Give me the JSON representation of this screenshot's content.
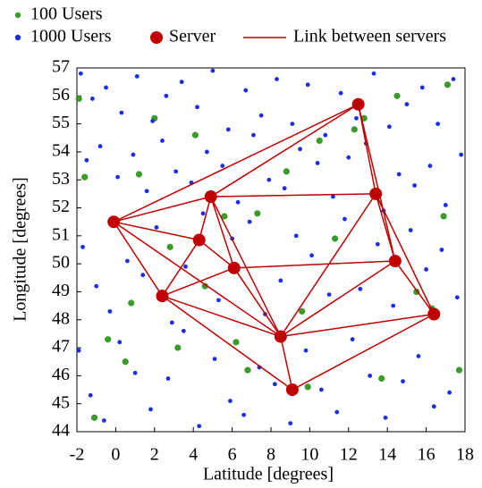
{
  "chart_data": {
    "type": "scatter",
    "xlabel": "Latitude [degrees]",
    "ylabel": "Longitude [degrees]",
    "xlim": [
      -2,
      18
    ],
    "xticks": [
      -2,
      0,
      2,
      4,
      6,
      8,
      10,
      12,
      14,
      16,
      18
    ],
    "ylim": [
      44,
      57
    ],
    "yticks": [
      44,
      45,
      46,
      47,
      48,
      49,
      50,
      51,
      52,
      53,
      54,
      55,
      56,
      57
    ],
    "series": [
      {
        "name": "100 Users",
        "color": "#3a9a2a",
        "x": [
          -1.9,
          -1.6,
          -0.4,
          0.5,
          1.2,
          2.0,
          3.2,
          4.1,
          4.6,
          5.6,
          6.8,
          7.3,
          8.8,
          9.6,
          10.5,
          11.3,
          12.3,
          13.7,
          14.5,
          15.5,
          16.3,
          17.1,
          17.7,
          -1.1,
          0.8,
          2.8,
          6.2,
          9.9,
          12.8,
          16.9
        ],
        "values": [
          55.9,
          53.1,
          47.3,
          46.5,
          53.2,
          55.2,
          47.0,
          54.6,
          49.2,
          51.7,
          46.2,
          51.8,
          53.3,
          48.3,
          54.4,
          50.9,
          54.8,
          45.9,
          56.0,
          49.0,
          48.4,
          56.4,
          46.2,
          44.5,
          48.6,
          50.6,
          47.2,
          45.6,
          55.2,
          51.7
        ]
      },
      {
        "name": "1000 Users",
        "color": "#1a2ee6",
        "x": [
          -1.8,
          -1.2,
          -0.5,
          0.3,
          1.1,
          1.9,
          2.6,
          3.4,
          4.2,
          5.0,
          5.8,
          6.7,
          7.5,
          8.3,
          9.1,
          9.9,
          10.8,
          11.6,
          12.4,
          13.3,
          14.1,
          15.0,
          15.8,
          16.6,
          17.4,
          -1.5,
          -0.8,
          0.1,
          0.9,
          1.6,
          2.4,
          3.1,
          3.9,
          4.7,
          5.5,
          6.3,
          7.1,
          7.9,
          8.7,
          9.5,
          10.4,
          11.2,
          12.0,
          12.9,
          13.8,
          14.6,
          15.4,
          16.2,
          17.0,
          17.8,
          -1.7,
          -1.0,
          -0.3,
          0.6,
          1.4,
          2.1,
          2.9,
          3.6,
          4.5,
          5.3,
          6.0,
          6.9,
          7.7,
          8.5,
          9.3,
          10.1,
          11.0,
          11.8,
          12.6,
          13.5,
          14.3,
          15.2,
          16.0,
          16.8,
          17.6,
          -1.9,
          -1.3,
          -0.6,
          0.2,
          1.0,
          1.8,
          2.7,
          3.5,
          4.3,
          5.1,
          5.9,
          6.6,
          7.4,
          8.2,
          9.0,
          9.8,
          10.6,
          11.4,
          12.2,
          13.1,
          13.9,
          14.8,
          15.6,
          16.4,
          17.2
        ],
        "values": [
          56.8,
          55.9,
          56.3,
          55.4,
          56.7,
          55.1,
          56.0,
          56.5,
          55.6,
          56.9,
          54.8,
          56.2,
          55.3,
          56.6,
          55.0,
          56.4,
          54.6,
          56.1,
          55.2,
          56.8,
          54.9,
          55.7,
          56.3,
          55.0,
          56.6,
          53.7,
          54.2,
          53.1,
          53.9,
          52.6,
          54.4,
          53.3,
          52.9,
          54.0,
          53.5,
          52.2,
          54.6,
          53.0,
          52.7,
          54.1,
          53.6,
          52.4,
          53.8,
          54.3,
          51.9,
          53.2,
          52.8,
          53.5,
          52.1,
          53.9,
          50.6,
          49.2,
          48.3,
          50.1,
          49.6,
          51.3,
          47.9,
          49.9,
          51.8,
          48.7,
          50.9,
          51.5,
          48.2,
          49.4,
          51.0,
          50.3,
          48.9,
          51.6,
          49.1,
          50.7,
          48.5,
          51.2,
          49.8,
          50.5,
          48.8,
          46.9,
          45.3,
          44.4,
          47.2,
          46.1,
          44.8,
          45.9,
          47.6,
          44.2,
          46.6,
          45.1,
          44.6,
          46.3,
          45.7,
          44.3,
          46.9,
          45.5,
          44.7,
          47.3,
          46.0,
          44.5,
          45.8,
          46.7,
          44.9,
          45.4
        ]
      },
      {
        "name": "Server",
        "color": "#c00000",
        "x": [
          -0.1,
          4.9,
          12.5,
          13.4,
          4.3,
          6.1,
          14.4,
          2.4,
          16.4,
          8.5,
          9.1
        ],
        "values": [
          51.5,
          52.4,
          55.7,
          52.5,
          50.85,
          49.85,
          50.1,
          48.85,
          48.2,
          47.4,
          45.5
        ]
      }
    ],
    "link_name": "Link between servers",
    "link_color": "#c00000",
    "links": [
      [
        0,
        2
      ],
      [
        0,
        1
      ],
      [
        0,
        4
      ],
      [
        0,
        7
      ],
      [
        0,
        9
      ],
      [
        1,
        2
      ],
      [
        1,
        3
      ],
      [
        1,
        4
      ],
      [
        1,
        5
      ],
      [
        1,
        9
      ],
      [
        2,
        3
      ],
      [
        2,
        6
      ],
      [
        3,
        6
      ],
      [
        3,
        8
      ],
      [
        3,
        9
      ],
      [
        4,
        5
      ],
      [
        4,
        7
      ],
      [
        5,
        6
      ],
      [
        5,
        7
      ],
      [
        5,
        9
      ],
      [
        7,
        9
      ],
      [
        7,
        10
      ],
      [
        6,
        8
      ],
      [
        6,
        9
      ],
      [
        8,
        9
      ],
      [
        8,
        10
      ],
      [
        9,
        10
      ]
    ]
  }
}
